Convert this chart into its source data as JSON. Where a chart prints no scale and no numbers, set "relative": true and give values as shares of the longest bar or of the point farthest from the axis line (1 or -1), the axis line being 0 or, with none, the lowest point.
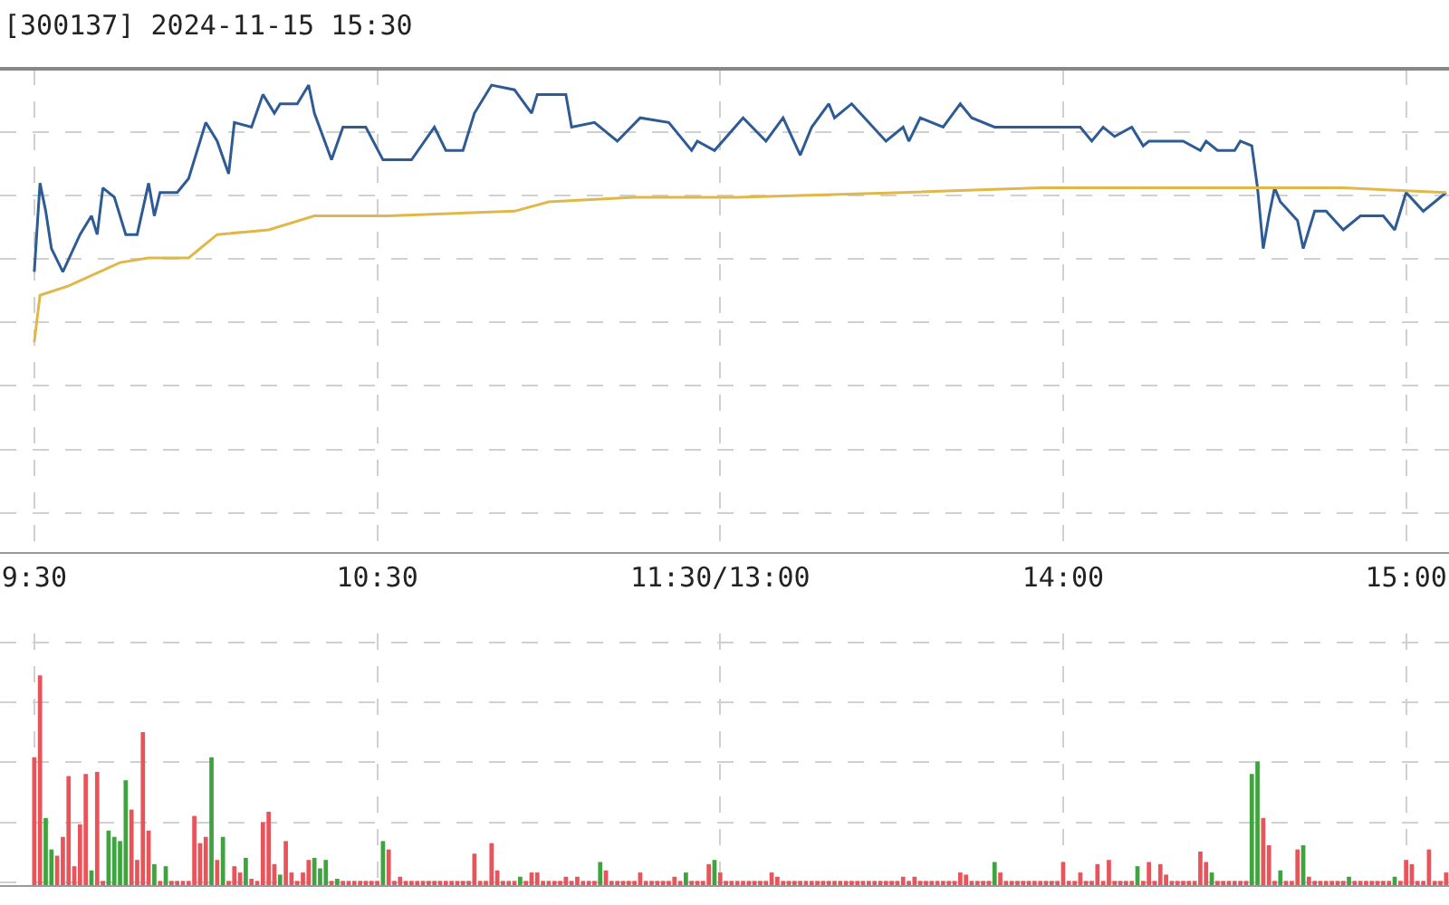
{
  "chart_data": [
    {
      "type": "line",
      "title": "[300137] 2024-11-15 15:30",
      "relative": true,
      "grid": true,
      "tick_labels": "x",
      "categories": [
        "9:30",
        null,
        null,
        null,
        null,
        null,
        null,
        null,
        null,
        null,
        null,
        null,
        null,
        null,
        null,
        null,
        null,
        null,
        null,
        null,
        null,
        null,
        null,
        null,
        null,
        null,
        null,
        null,
        null,
        null,
        null,
        null,
        null,
        null,
        null,
        null,
        null,
        null,
        null,
        null,
        null,
        null,
        null,
        null,
        null,
        null,
        null,
        null,
        null,
        null,
        null,
        null,
        null,
        null,
        null,
        null,
        null,
        null,
        null,
        null,
        "10:30",
        null,
        null,
        null,
        null,
        null,
        null,
        null,
        null,
        null,
        null,
        null,
        null,
        null,
        null,
        null,
        null,
        null,
        null,
        null,
        null,
        null,
        null,
        null,
        null,
        null,
        null,
        null,
        null,
        null,
        null,
        null,
        null,
        null,
        null,
        null,
        null,
        null,
        null,
        null,
        null,
        null,
        null,
        null,
        null,
        null,
        null,
        null,
        null,
        null,
        null,
        null,
        null,
        null,
        null,
        null,
        null,
        null,
        null,
        null,
        "11:30/13:00",
        null,
        null,
        null,
        null,
        null,
        null,
        null,
        null,
        null,
        null,
        null,
        null,
        null,
        null,
        null,
        null,
        null,
        null,
        null,
        null,
        null,
        null,
        null,
        null,
        null,
        null,
        null,
        null,
        null,
        null,
        null,
        null,
        null,
        null,
        null,
        null,
        null,
        null,
        null,
        null,
        null,
        null,
        null,
        null,
        null,
        null,
        null,
        null,
        null,
        null,
        null,
        null,
        null,
        null,
        null,
        null,
        null,
        null,
        null,
        "14:00",
        null,
        null,
        null,
        null,
        null,
        null,
        null,
        null,
        null,
        null,
        null,
        null,
        null,
        null,
        null,
        null,
        null,
        null,
        null,
        null,
        null,
        null,
        null,
        null,
        null,
        null,
        null,
        null,
        null,
        null,
        null,
        null,
        null,
        null,
        null,
        null,
        null,
        null,
        null,
        null,
        null,
        null,
        null,
        null,
        null,
        null,
        null,
        null,
        null,
        null,
        null,
        null,
        null,
        null,
        null,
        null,
        null,
        null,
        null,
        "15:00",
        null,
        null,
        null,
        null,
        null,
        null,
        null
      ],
      "series": [
        {
          "color": "#2e5b93",
          "values": [
            0.6,
            0.79,
            0.73,
            0.65,
            null,
            0.6,
            null,
            null,
            0.68,
            null,
            0.72,
            0.68,
            0.78,
            null,
            0.76,
            null,
            0.68,
            null,
            0.68,
            null,
            0.79,
            0.72,
            0.77,
            null,
            null,
            0.77,
            null,
            0.8,
            null,
            null,
            0.92,
            null,
            0.88,
            null,
            0.81,
            0.92,
            null,
            null,
            0.91,
            null,
            0.98,
            null,
            0.94,
            0.96,
            null,
            null,
            0.96,
            null,
            1,
            0.94,
            null,
            null,
            0.84,
            null,
            0.91,
            null,
            null,
            null,
            0.91,
            null,
            null,
            0.84,
            null,
            null,
            null,
            null,
            0.84,
            null,
            null,
            null,
            0.91,
            null,
            0.86,
            null,
            null,
            0.86,
            null,
            0.94,
            null,
            null,
            1,
            null,
            null,
            null,
            0.99,
            null,
            null,
            0.94,
            0.98,
            null,
            null,
            null,
            null,
            0.98,
            0.91,
            null,
            null,
            null,
            0.92,
            null,
            null,
            null,
            0.88,
            null,
            null,
            null,
            0.93,
            null,
            null,
            null,
            null,
            0.92,
            null,
            null,
            null,
            0.86,
            0.88,
            null,
            null,
            0.86,
            null,
            null,
            null,
            null,
            0.93,
            null,
            null,
            null,
            0.88,
            null,
            null,
            0.93,
            null,
            null,
            0.85,
            null,
            0.91,
            null,
            null,
            0.96,
            0.93,
            null,
            null,
            0.96,
            null,
            null,
            null,
            null,
            null,
            0.88,
            null,
            null,
            0.91,
            0.88,
            null,
            0.93,
            null,
            null,
            null,
            0.91,
            null,
            null,
            0.96,
            null,
            0.93,
            null,
            null,
            null,
            0.91,
            null,
            null,
            null,
            null,
            null,
            null,
            null,
            null,
            null,
            null,
            null,
            null,
            null,
            null,
            0.91,
            null,
            0.88,
            null,
            0.91,
            null,
            0.89,
            null,
            null,
            0.91,
            null,
            0.87,
            0.88,
            null,
            null,
            null,
            null,
            null,
            0.88,
            null,
            null,
            0.86,
            0.88,
            null,
            0.86,
            null,
            null,
            0.86,
            0.88,
            null,
            0.87,
            0.78,
            0.65,
            0.72,
            0.78,
            0.75,
            null,
            null,
            0.71,
            0.65,
            null,
            0.73,
            null,
            0.73,
            null,
            null,
            0.69,
            null,
            null,
            0.72,
            null,
            null,
            null,
            0.72,
            null,
            0.69,
            null,
            0.77,
            null,
            null,
            0.73,
            null,
            null,
            null,
            0.77
          ]
        },
        {
          "color": "#e0b84a",
          "values": [
            0.45,
            0.55,
            null,
            null,
            null,
            null,
            0.57,
            null,
            null,
            null,
            null,
            null,
            null,
            null,
            null,
            0.62,
            null,
            null,
            null,
            null,
            0.63,
            null,
            null,
            null,
            null,
            null,
            null,
            0.63,
            null,
            null,
            null,
            null,
            0.68,
            null,
            null,
            null,
            null,
            null,
            null,
            null,
            null,
            0.69,
            null,
            null,
            null,
            null,
            null,
            null,
            null,
            0.72,
            null,
            null,
            null,
            null,
            null,
            null,
            null,
            null,
            null,
            null,
            null,
            null,
            0.72,
            null,
            null,
            null,
            null,
            null,
            null,
            null,
            null,
            null,
            null,
            null,
            null,
            null,
            null,
            null,
            null,
            null,
            null,
            null,
            null,
            null,
            0.73,
            null,
            null,
            null,
            null,
            null,
            0.75,
            null,
            null,
            null,
            null,
            null,
            null,
            null,
            null,
            null,
            null,
            null,
            null,
            null,
            null,
            0.76,
            null,
            null,
            null,
            null,
            null,
            null,
            null,
            null,
            null,
            null,
            null,
            null,
            null,
            null,
            null,
            null,
            null,
            0.76,
            null,
            null,
            null,
            null,
            null,
            null,
            null,
            null,
            null,
            null,
            null,
            null,
            null,
            null,
            null,
            null,
            null,
            null,
            null,
            null,
            null,
            null,
            null,
            null,
            null,
            null,
            null,
            null,
            0.77,
            null,
            null,
            null,
            null,
            null,
            null,
            null,
            null,
            null,
            null,
            null,
            null,
            null,
            null,
            null,
            null,
            null,
            null,
            null,
            null,
            null,
            null,
            null,
            0.78,
            null,
            null,
            null,
            null,
            null,
            null,
            null,
            null,
            null,
            null,
            null,
            null,
            null,
            null,
            null,
            null,
            null,
            null,
            0.78,
            null,
            null,
            null,
            null,
            null,
            null,
            null,
            null,
            null,
            null,
            null,
            null,
            null,
            null,
            null,
            null,
            null,
            null,
            null,
            null,
            null,
            null,
            null,
            null,
            null,
            null,
            null,
            null,
            null,
            null,
            null,
            null,
            null,
            0.78,
            null,
            null,
            null,
            null,
            null,
            null,
            null,
            null,
            null,
            null,
            null,
            null,
            null,
            null,
            null,
            null,
            null,
            0.77
          ]
        }
      ]
    },
    {
      "type": "bar",
      "relative": true,
      "grid": true,
      "tick_labels": false,
      "categories": [
        null,
        null,
        null,
        null,
        null,
        null,
        null,
        null,
        null,
        null,
        null,
        null,
        null,
        null,
        null,
        null,
        null,
        null,
        null,
        null,
        null,
        null,
        null,
        null,
        null,
        null,
        null,
        null,
        null,
        null,
        null,
        null,
        null,
        null,
        null,
        null,
        null,
        null,
        null,
        null,
        null,
        null,
        null,
        null,
        null,
        null,
        null,
        null,
        null,
        null,
        null,
        null,
        null,
        null,
        null,
        null,
        null,
        null,
        null,
        null,
        null,
        null,
        null,
        null,
        null,
        null,
        null,
        null,
        null,
        null,
        null,
        null,
        null,
        null,
        null,
        null,
        null,
        null,
        null,
        null,
        null,
        null,
        null,
        null,
        null,
        null,
        null,
        null,
        null,
        null,
        null,
        null,
        null,
        null,
        null,
        null,
        null,
        null,
        null,
        null,
        null,
        null,
        null,
        null,
        null,
        null,
        null,
        null,
        null,
        null,
        null,
        null,
        null,
        null,
        null,
        null,
        null,
        null,
        null,
        null,
        null,
        null,
        null,
        null,
        null,
        null,
        null,
        null,
        null,
        null,
        null,
        null,
        null,
        null,
        null,
        null,
        null,
        null,
        null,
        null,
        null,
        null,
        null,
        null,
        null,
        null,
        null,
        null,
        null,
        null,
        null,
        null,
        null,
        null,
        null,
        null,
        null,
        null,
        null,
        null,
        null,
        null,
        null,
        null,
        null,
        null,
        null,
        null,
        null,
        null,
        null,
        null,
        null,
        null,
        null,
        null,
        null,
        null,
        null,
        null,
        null,
        null,
        null,
        null,
        null,
        null,
        null,
        null,
        null,
        null,
        null,
        null,
        null,
        null,
        null,
        null,
        null,
        null,
        null,
        null,
        null,
        null,
        null,
        null,
        null,
        null,
        null,
        null,
        null,
        null,
        null,
        null,
        null,
        null,
        null,
        null,
        null,
        null,
        null,
        null,
        null,
        null,
        null,
        null,
        null,
        null,
        null,
        null,
        null,
        null,
        null,
        null,
        null,
        null,
        null,
        null,
        null,
        null,
        null,
        null,
        null,
        null,
        null,
        null,
        null,
        null,
        null,
        null
      ],
      "values": [
        0.61,
        1,
        0.32,
        0.17,
        0.14,
        0.23,
        0.52,
        0.09,
        0.29,
        0.53,
        0.07,
        0.54,
        0.02,
        0.26,
        0.23,
        0.21,
        0.5,
        0.36,
        0.12,
        0.73,
        0.26,
        0.1,
        0.02,
        0.09,
        0.02,
        0.02,
        0.02,
        0.02,
        0.33,
        0.2,
        0.23,
        0.61,
        0.12,
        0.23,
        0.02,
        0.09,
        0.06,
        0.13,
        0.03,
        0.02,
        0.3,
        0.35,
        0.1,
        0.05,
        0.21,
        0.06,
        0.02,
        0.06,
        0.12,
        0.13,
        0.08,
        0.12,
        0.02,
        0.03,
        0.02,
        0.02,
        0.02,
        0.02,
        0.02,
        0.02,
        0.02,
        0.21,
        0.17,
        0.02,
        0.04,
        0.02,
        0.02,
        0.02,
        0.02,
        0.02,
        0.02,
        0.02,
        0.02,
        0.02,
        0.02,
        0.02,
        0.02,
        0.15,
        0.02,
        0.02,
        0.2,
        0.07,
        0.02,
        0.02,
        0.02,
        0.04,
        0.02,
        0.06,
        0.06,
        0.02,
        0.02,
        0.02,
        0.02,
        0.04,
        0.02,
        0.04,
        0.02,
        0.02,
        0.02,
        0.11,
        0.07,
        0.02,
        0.02,
        0.02,
        0.02,
        0.02,
        0.06,
        0.02,
        0.02,
        0.02,
        0.02,
        0.02,
        0.04,
        0.02,
        0.06,
        0.02,
        0.02,
        0.02,
        0.1,
        0.12,
        0.06,
        0.02,
        0.02,
        0.02,
        0.02,
        0.02,
        0.02,
        0.02,
        0.02,
        0.06,
        0.04,
        0.02,
        0.02,
        0.02,
        0.02,
        0.02,
        0.02,
        0.02,
        0.02,
        0.02,
        0.02,
        0.02,
        0.02,
        0.02,
        0.02,
        0.02,
        0.02,
        0.02,
        0.02,
        0.02,
        0.02,
        0.02,
        0.04,
        0.02,
        0.04,
        0.02,
        0.02,
        0.02,
        0.02,
        0.02,
        0.02,
        0.02,
        0.06,
        0.05,
        0.02,
        0.02,
        0.02,
        0.02,
        0.11,
        0.06,
        0.02,
        0.02,
        0.02,
        0.02,
        0.02,
        0.02,
        0.02,
        0.02,
        0.02,
        0.02,
        0.11,
        0.02,
        0.02,
        0.06,
        0.02,
        0.02,
        0.1,
        0.02,
        0.12,
        0.02,
        0.02,
        0.02,
        0.02,
        0.09,
        0.02,
        0.11,
        0.02,
        0.1,
        0.05,
        0.02,
        0.02,
        0.02,
        0.02,
        0.02,
        0.16,
        0.11,
        0.06,
        0.02,
        0.02,
        0.02,
        0.02,
        0.02,
        0.02,
        0.53,
        0.59,
        0.32,
        0.19,
        0.02,
        0.07,
        0.02,
        0.02,
        0.17,
        0.19,
        0.04,
        0.02,
        0.02,
        0.02,
        0.02,
        0.02,
        0.02,
        0.04,
        0.02,
        0.02,
        0.02,
        0.02,
        0.02,
        0.02,
        0.02,
        0.04,
        0.02,
        0.12,
        0.1,
        0.02,
        0.02,
        0.17,
        0.02,
        0.02,
        0.06
      ],
      "colors": [
        "#e8545a",
        "#e8545a",
        "#3fa33f",
        "#3fa33f",
        "#e8545a",
        "#e8545a",
        "#e8545a",
        "#e8545a",
        "#e8545a",
        "#e8545a",
        "#3fa33f",
        "#e8545a",
        "#e8545a",
        "#3fa33f",
        "#3fa33f",
        "#3fa33f",
        "#3fa33f",
        "#e8545a",
        "#e8545a",
        "#e8545a",
        "#e8545a",
        "#3fa33f",
        "#e8545a",
        "#3fa33f",
        "#e8545a",
        "#e8545a",
        "#e8545a",
        "#e8545a",
        "#e8545a",
        "#e8545a",
        "#e8545a",
        "#3fa33f",
        "#e8545a",
        "#3fa33f",
        "#e8545a",
        "#e8545a",
        "#e8545a",
        "#3fa33f",
        "#e8545a",
        "#e8545a",
        "#e8545a",
        "#e8545a",
        "#e8545a",
        "#3fa33f",
        "#e8545a",
        "#e8545a",
        "#e8545a",
        "#e8545a",
        "#e8545a",
        "#3fa33f",
        "#3fa33f",
        "#3fa33f",
        "#e8545a",
        "#3fa33f",
        "#e8545a",
        "#e8545a",
        "#e8545a",
        "#e8545a",
        "#e8545a",
        "#e8545a",
        "#e8545a",
        "#3fa33f",
        "#e8545a",
        "#e8545a",
        "#e8545a",
        "#e8545a",
        "#e8545a",
        "#e8545a",
        "#e8545a",
        "#e8545a",
        "#e8545a",
        "#e8545a",
        "#e8545a",
        "#e8545a",
        "#e8545a",
        "#e8545a",
        "#e8545a",
        "#e8545a",
        "#e8545a",
        "#e8545a",
        "#e8545a",
        "#e8545a",
        "#e8545a",
        "#e8545a",
        "#e8545a",
        "#3fa33f",
        "#e8545a",
        "#e8545a",
        "#e8545a",
        "#e8545a",
        "#e8545a",
        "#e8545a",
        "#e8545a",
        "#e8545a",
        "#e8545a",
        "#e8545a",
        "#e8545a",
        "#e8545a",
        "#e8545a",
        "#3fa33f",
        "#e8545a",
        "#e8545a",
        "#e8545a",
        "#e8545a",
        "#e8545a",
        "#e8545a",
        "#e8545a",
        "#e8545a",
        "#e8545a",
        "#e8545a",
        "#e8545a",
        "#e8545a",
        "#e8545a",
        "#e8545a",
        "#3fa33f",
        "#e8545a",
        "#e8545a",
        "#e8545a",
        "#e8545a",
        "#3fa33f",
        "#e8545a",
        "#e8545a",
        "#e8545a",
        "#e8545a",
        "#e8545a",
        "#e8545a",
        "#e8545a",
        "#e8545a",
        "#e8545a",
        "#e8545a",
        "#e8545a",
        "#e8545a",
        "#e8545a",
        "#e8545a",
        "#e8545a",
        "#e8545a",
        "#e8545a",
        "#e8545a",
        "#e8545a",
        "#e8545a",
        "#e8545a",
        "#e8545a",
        "#e8545a",
        "#e8545a",
        "#e8545a",
        "#e8545a",
        "#e8545a",
        "#e8545a",
        "#e8545a",
        "#e8545a",
        "#e8545a",
        "#e8545a",
        "#e8545a",
        "#e8545a",
        "#e8545a",
        "#e8545a",
        "#e8545a",
        "#e8545a",
        "#e8545a",
        "#e8545a",
        "#e8545a",
        "#e8545a",
        "#e8545a",
        "#e8545a",
        "#e8545a",
        "#e8545a",
        "#e8545a",
        "#e8545a",
        "#3fa33f",
        "#e8545a",
        "#e8545a",
        "#e8545a",
        "#e8545a",
        "#e8545a",
        "#e8545a",
        "#e8545a",
        "#e8545a",
        "#e8545a",
        "#e8545a",
        "#e8545a",
        "#e8545a",
        "#e8545a",
        "#e8545a",
        "#e8545a",
        "#e8545a",
        "#e8545a",
        "#e8545a",
        "#e8545a",
        "#e8545a",
        "#e8545a",
        "#e8545a",
        "#e8545a",
        "#e8545a",
        "#3fa33f",
        "#e8545a",
        "#e8545a",
        "#e8545a",
        "#e8545a",
        "#e8545a",
        "#e8545a",
        "#e8545a",
        "#e8545a",
        "#e8545a",
        "#e8545a",
        "#e8545a",
        "#e8545a",
        "#3fa33f",
        "#e8545a",
        "#e8545a",
        "#e8545a",
        "#e8545a",
        "#e8545a",
        "#e8545a",
        "#3fa33f",
        "#3fa33f",
        "#e8545a",
        "#e8545a",
        "#e8545a",
        "#3fa33f",
        "#e8545a",
        "#e8545a",
        "#e8545a",
        "#3fa33f",
        "#e8545a",
        "#e8545a",
        "#e8545a",
        "#e8545a",
        "#e8545a",
        "#e8545a",
        "#e8545a",
        "#3fa33f",
        "#e8545a",
        "#e8545a",
        "#e8545a",
        "#e8545a",
        "#e8545a",
        "#e8545a",
        "#e8545a",
        "#3fa33f",
        "#e8545a",
        "#e8545a",
        "#e8545a",
        "#e8545a",
        "#e8545a",
        "#e8545a",
        "#e8545a",
        "#e8545a",
        "#e8545a"
      ]
    }
  ]
}
